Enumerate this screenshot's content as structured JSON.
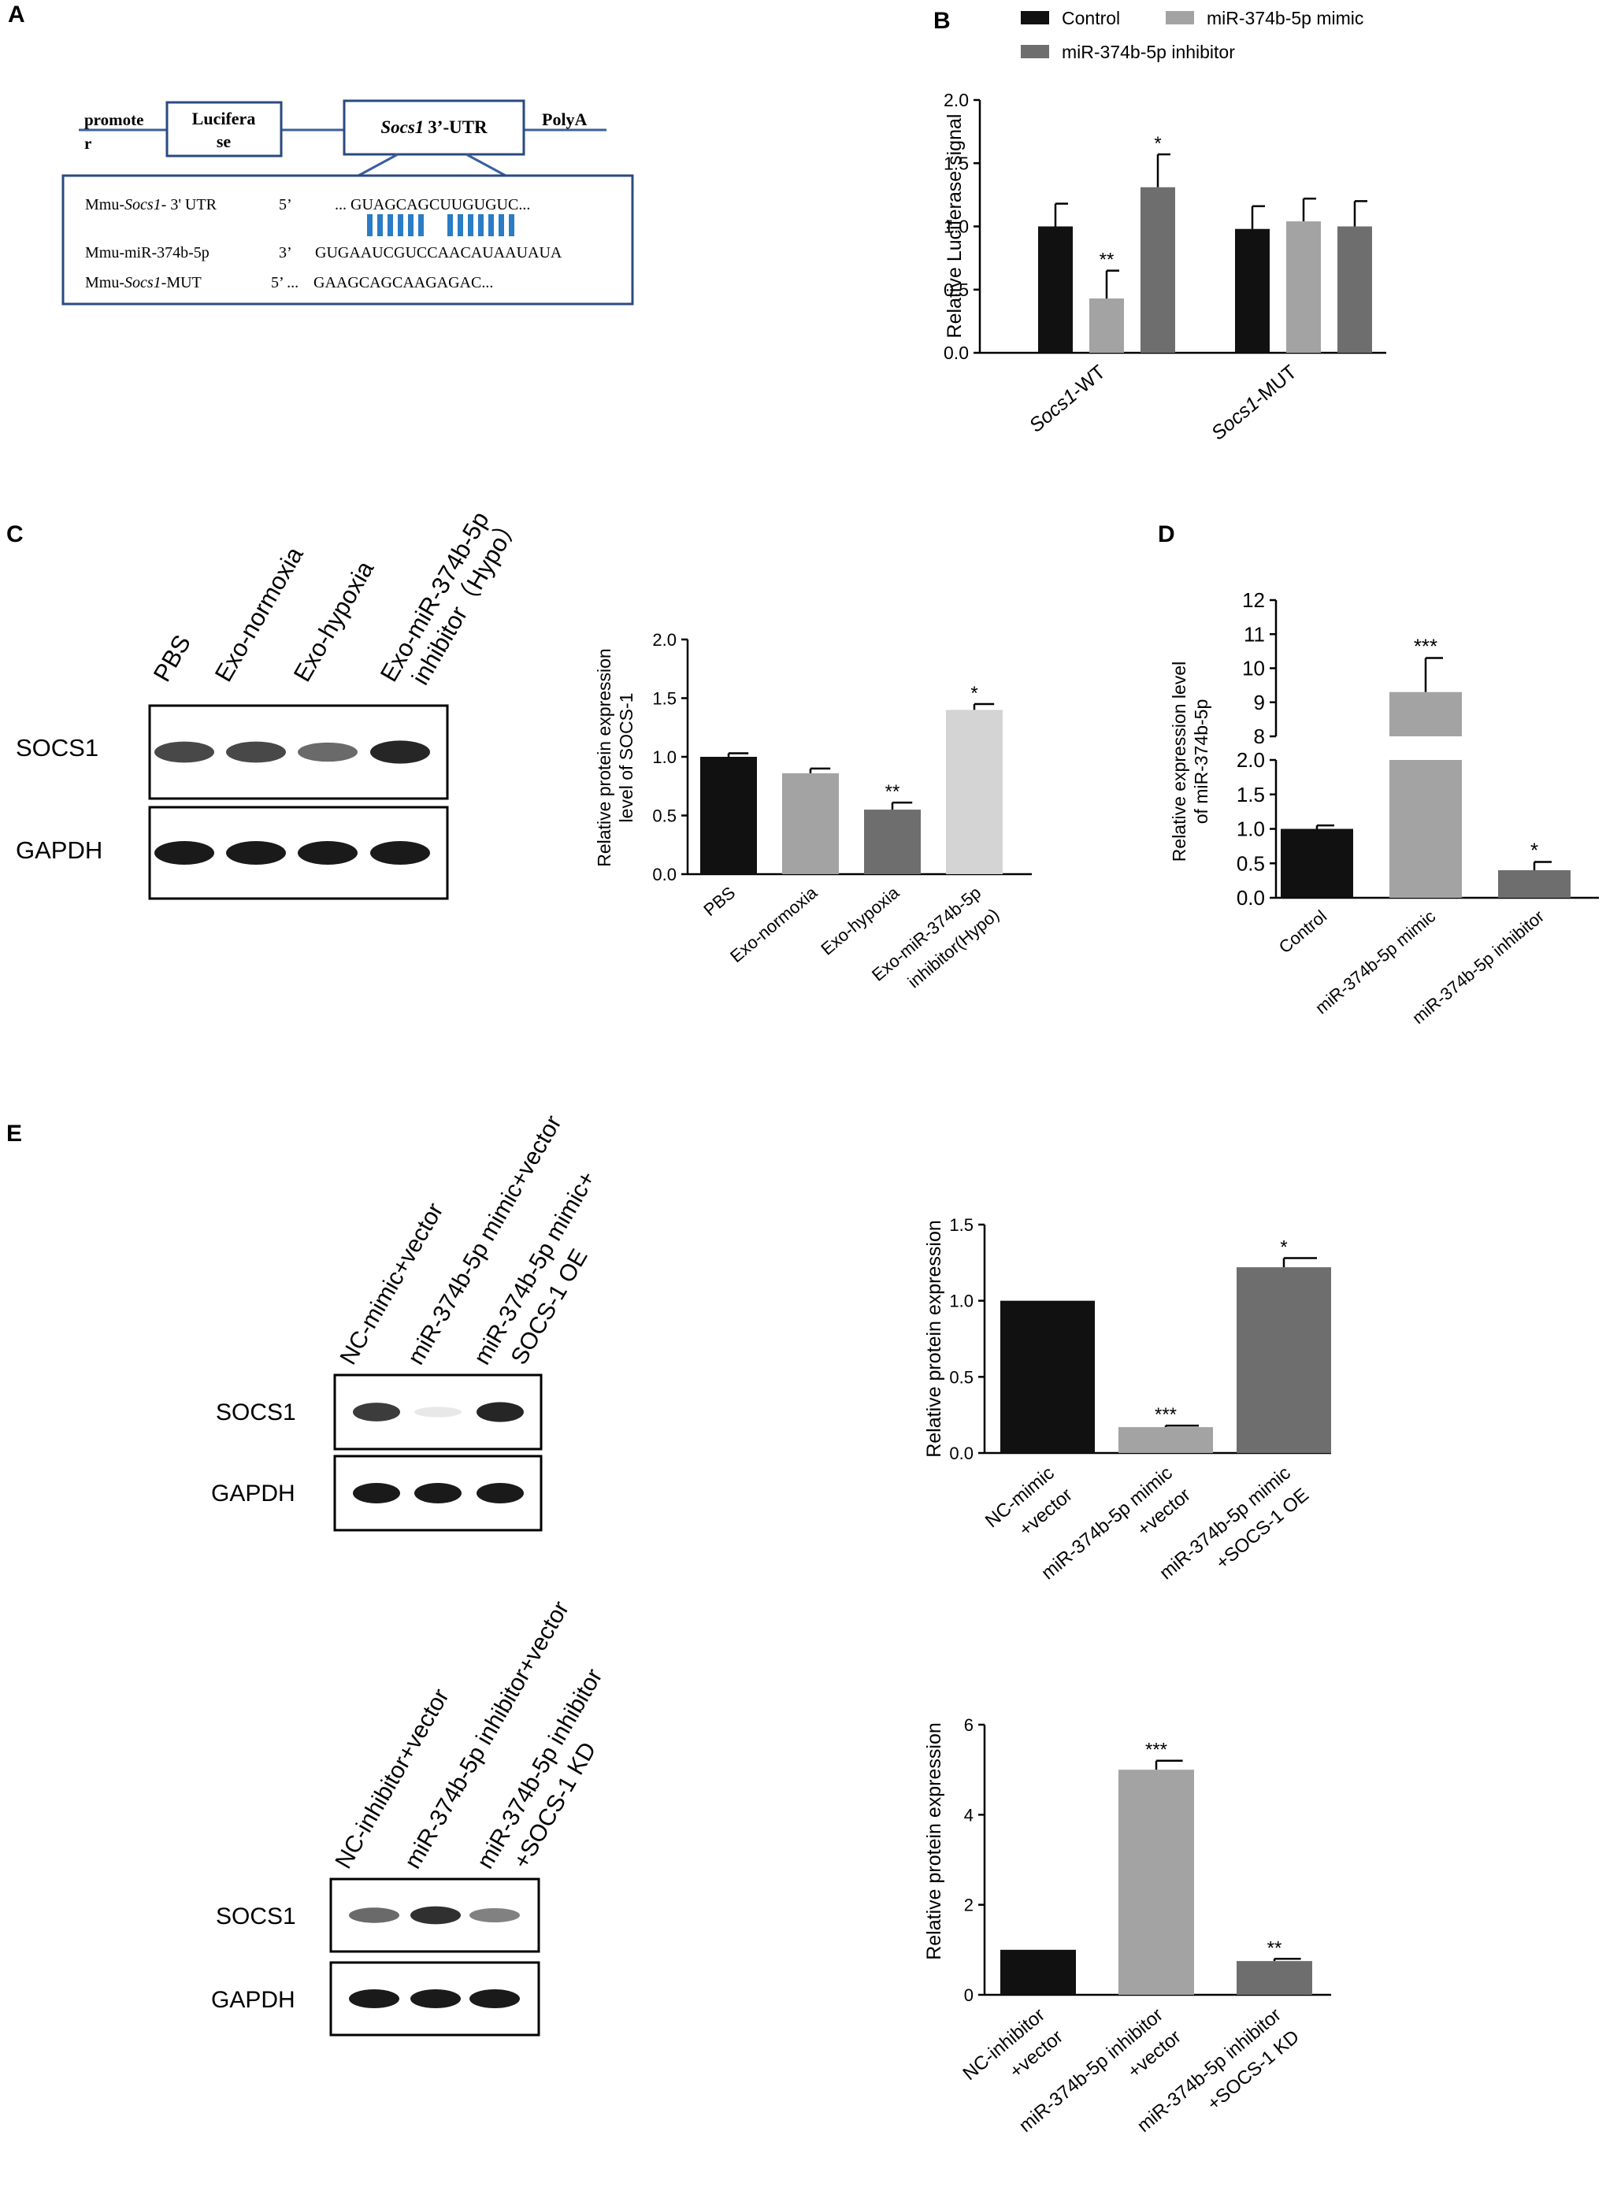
{
  "panel_labels": {
    "a": "A",
    "b": "B",
    "c": "C",
    "d": "D",
    "e": "E"
  },
  "construct": {
    "promoter_line1": "promote",
    "promoter_line2": "r",
    "luciferase_line1": "Lucifera",
    "luciferase_line2": "se",
    "utr_gene": "Socs1",
    "utr_suffix": "3’-UTR",
    "polya": "PolyA",
    "wt_label_prefix": "Mmu-",
    "wt_label_gene": "Socs1",
    "wt_label_suffix": "- 3' UTR",
    "wt_end": "5’",
    "wt_seq": "... GUAGCAGCUUGUGUC...",
    "mir_label": "Mmu-miR-374b-5p",
    "mir_end": "3’",
    "mir_seq": "GUGAAUCGUCCAACAUAAUAUA",
    "mut_label_prefix": "Mmu-",
    "mut_label_gene": "Socs1",
    "mut_label_suffix": "-MUT",
    "mut_end": "5’ ...",
    "mut_seq": "GAAGCAGCAAGAGAC..."
  },
  "blots": {
    "c": {
      "lanes": [
        "PBS",
        "Exo-normoxia",
        "Exo-hypoxia",
        "Exo-miR-374b-5p",
        "inhibitor（Hypo）"
      ],
      "socs1": "SOCS1",
      "gapdh": "GAPDH",
      "socs1_intensity": [
        0.8,
        0.8,
        0.65,
        0.95
      ],
      "gapdh_intensity": [
        1,
        1,
        1,
        1
      ]
    },
    "e1": {
      "lanes": [
        "NC-mimic+vector",
        "miR-374b-5p mimic+vector",
        "miR-374b-5p mimic+",
        "SOCS-1 OE"
      ],
      "socs1": "SOCS1",
      "gapdh": "GAPDH",
      "socs1_intensity": [
        0.85,
        0.1,
        0.95
      ],
      "gapdh_intensity": [
        1,
        1,
        1
      ]
    },
    "e2": {
      "lanes": [
        "NC-inhibitor+vector",
        "miR-374b-5p inhibitor+vector",
        "miR-374b-5p inhibitor",
        "+SOCS-1 KD"
      ],
      "socs1": "SOCS1",
      "gapdh": "GAPDH",
      "socs1_intensity": [
        0.65,
        0.9,
        0.55
      ],
      "gapdh_intensity": [
        1,
        1,
        1
      ]
    }
  },
  "chart_data": [
    {
      "id": "B",
      "type": "bar",
      "ylabel": "Relative Luciferase signal",
      "ylim": [
        0,
        2.0
      ],
      "yticks": [
        "0.0",
        "0.5",
        "1.0",
        "1.5",
        "2.0"
      ],
      "categories": [
        "Socs1-WT",
        "Socs1-MUT"
      ],
      "category_parts": [
        [
          "Socs1",
          "-WT"
        ],
        [
          "Socs1",
          "-MUT"
        ]
      ],
      "series": [
        {
          "name": "Control",
          "color": "#111111",
          "values": [
            1.0,
            0.98
          ],
          "errors": [
            0.18,
            0.18
          ],
          "sig": [
            "",
            ""
          ]
        },
        {
          "name": "miR-374b-5p mimic",
          "color": "#a3a3a3",
          "values": [
            0.43,
            1.04
          ],
          "errors": [
            0.22,
            0.18
          ],
          "sig": [
            "**",
            ""
          ]
        },
        {
          "name": "miR-374b-5p inhibitor",
          "color": "#6e6e6e",
          "values": [
            1.31,
            1.0
          ],
          "errors": [
            0.26,
            0.2
          ],
          "sig": [
            "*",
            ""
          ]
        }
      ],
      "legend": "top"
    },
    {
      "id": "C",
      "type": "bar",
      "ylabel": [
        "Relative protein expression",
        "level of SOCS-1"
      ],
      "ylim": [
        0,
        2.0
      ],
      "yticks": [
        "0.0",
        "0.5",
        "1.0",
        "1.5",
        "2.0"
      ],
      "categories": [
        "PBS",
        "Exo-normoxia",
        "Exo-hypoxia",
        "Exo-miR-374b-5p inhibitor(Hypo)"
      ],
      "category_lines": [
        [
          "PBS"
        ],
        [
          "Exo-normoxia"
        ],
        [
          "Exo-hypoxia"
        ],
        [
          "Exo-miR-374b-5p",
          "inhibitor(Hypo)"
        ]
      ],
      "values": [
        1.0,
        0.86,
        0.55,
        1.4
      ],
      "errors": [
        0.03,
        0.04,
        0.06,
        0.05
      ],
      "sig": [
        "",
        "",
        "**",
        "*"
      ],
      "colors": [
        "#111111",
        "#a3a3a3",
        "#6e6e6e",
        "#d4d4d4"
      ]
    },
    {
      "id": "D",
      "type": "bar",
      "ylabel": [
        "Relative expression level",
        "of miR-374b-5p"
      ],
      "broken_axis": {
        "lower": [
          0,
          2.0
        ],
        "upper": [
          8,
          12
        ]
      },
      "yticks_lower": [
        "0.0",
        "0.5",
        "1.0",
        "1.5",
        "2.0"
      ],
      "yticks_upper": [
        "8",
        "9",
        "10",
        "11",
        "12"
      ],
      "categories": [
        "Control",
        "miR-374b-5p mimic",
        "miR-374b-5p inhibitor"
      ],
      "values": [
        1.0,
        9.3,
        0.4
      ],
      "errors": [
        0.05,
        1.0,
        0.12
      ],
      "sig": [
        "",
        "***",
        "*"
      ],
      "colors": [
        "#111111",
        "#a3a3a3",
        "#6e6e6e"
      ]
    },
    {
      "id": "E-top",
      "type": "bar",
      "ylabel": "Relative protein expression",
      "ylim": [
        0,
        1.5
      ],
      "yticks": [
        "0.0",
        "0.5",
        "1.0",
        "1.5"
      ],
      "categories": [
        "NC-mimic +vector",
        "miR-374b-5p mimic +vector",
        "miR-374b-5p mimic +SOCS-1 OE"
      ],
      "category_lines": [
        [
          "NC-mimic",
          "+vector"
        ],
        [
          "miR-374b-5p mimic",
          "+vector"
        ],
        [
          "miR-374b-5p mimic",
          "+SOCS-1 OE"
        ]
      ],
      "values": [
        1.0,
        0.17,
        1.22
      ],
      "errors": [
        0,
        0.01,
        0.06
      ],
      "sig": [
        "",
        "***",
        "*"
      ],
      "colors": [
        "#111111",
        "#a3a3a3",
        "#6e6e6e"
      ]
    },
    {
      "id": "E-bottom",
      "type": "bar",
      "ylabel": "Relative protein expression",
      "ylim": [
        0,
        6
      ],
      "yticks": [
        "0",
        "2",
        "4",
        "6"
      ],
      "categories": [
        "NC-inhibitor +vector",
        "miR-374b-5p inhibitor +vector",
        "miR-374b-5p inhibitor +SOCS-1 KD"
      ],
      "category_lines": [
        [
          "NC-inhibitor",
          "+vector"
        ],
        [
          "miR-374b-5p inhibitor",
          "+vector"
        ],
        [
          "miR-374b-5p inhibitor",
          "+SOCS-1 KD"
        ]
      ],
      "values": [
        1.0,
        5.0,
        0.75
      ],
      "errors": [
        0,
        0.2,
        0.05
      ],
      "sig": [
        "",
        "***",
        "**"
      ],
      "colors": [
        "#111111",
        "#a3a3a3",
        "#6e6e6e"
      ]
    }
  ]
}
